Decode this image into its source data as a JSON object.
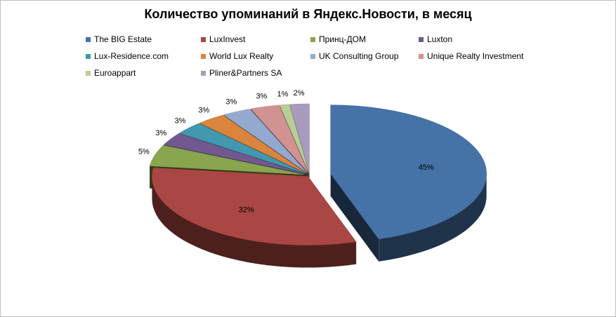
{
  "chart_data": {
    "type": "pie",
    "title": "Количество упоминаний в Яндекс.Новости, в месяц",
    "categories": [
      "The BIG Estate",
      "LuxInvest",
      "Принц-ДОМ",
      "Luxton",
      "Lux-Residence.com",
      "World Lux Realty",
      "UK Consulting  Group",
      "Unique Realty  Investment",
      "Euroappart",
      "Pliner&Partners SA"
    ],
    "values": [
      45,
      32,
      5,
      3,
      3,
      3,
      3,
      3,
      1,
      2
    ],
    "labels": [
      "45%",
      "32%",
      "5%",
      "3%",
      "3%",
      "3%",
      "3%",
      "3%",
      "1%",
      "2%"
    ],
    "colors": [
      "#4572A7",
      "#AA4643",
      "#89A54E",
      "#71588F",
      "#4198AF",
      "#DB843D",
      "#93A9CF",
      "#D19392",
      "#B9CD96",
      "#A99BBD"
    ],
    "style": "3d-exploded",
    "legend": "top"
  }
}
